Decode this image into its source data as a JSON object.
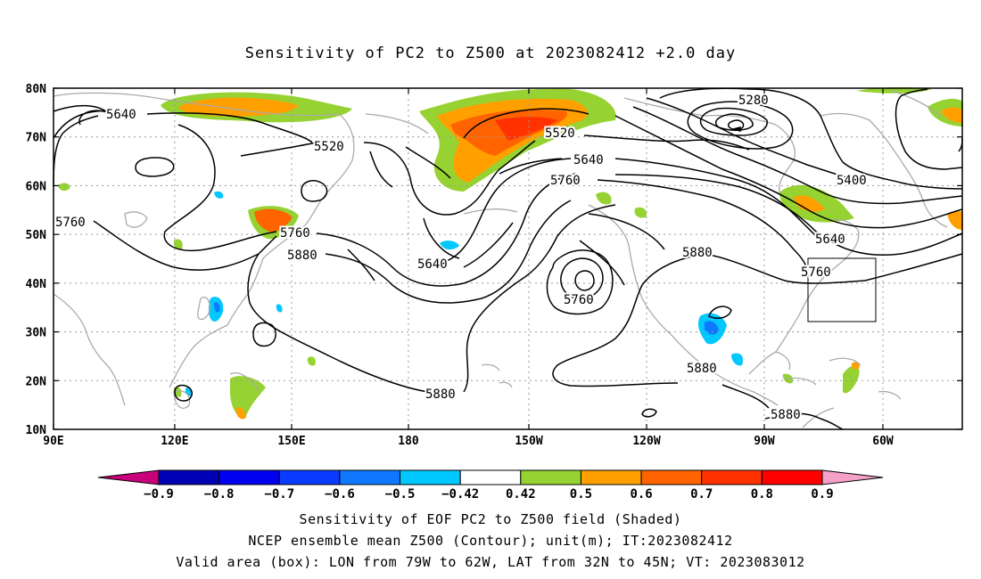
{
  "title": "Sensitivity of PC2 to Z500 at 2023082412 +2.0 day",
  "lat_labels": [
    "80N",
    "70N",
    "60N",
    "50N",
    "40N",
    "30N",
    "20N",
    "10N"
  ],
  "lon_labels": [
    "90E",
    "120E",
    "150E",
    "180",
    "150W",
    "120W",
    "90W",
    "60W"
  ],
  "contour_labels": [
    {
      "text": "5640"
    },
    {
      "text": "5520"
    },
    {
      "text": "5760"
    },
    {
      "text": "5760"
    },
    {
      "text": "5880"
    },
    {
      "text": "5640"
    },
    {
      "text": "5520"
    },
    {
      "text": "5640"
    },
    {
      "text": "5760"
    },
    {
      "text": "5760"
    },
    {
      "text": "5280"
    },
    {
      "text": "5400"
    },
    {
      "text": "5640"
    },
    {
      "text": "5760"
    },
    {
      "text": "5880"
    },
    {
      "text": "5880"
    },
    {
      "text": "5880"
    },
    {
      "text": "5880"
    }
  ],
  "colorbar": {
    "labels": [
      "-0.9",
      "-0.8",
      "-0.7",
      "-0.6",
      "-0.5",
      "-0.42",
      "0.42",
      "0.5",
      "0.6",
      "0.7",
      "0.8",
      "0.9"
    ],
    "colors": [
      "#c8007c",
      "#0000b4",
      "#0000f0",
      "#0a3cff",
      "#0f78ff",
      "#00c8ff",
      "#ffffff",
      "#96d232",
      "#ffa000",
      "#ff6400",
      "#ff3200",
      "#ff0000",
      "#f5a0c8"
    ]
  },
  "captions": [
    "Sensitivity of EOF PC2 to Z500 field (Shaded)",
    "NCEP ensemble mean Z500 (Contour); unit(m); IT:2023082412",
    "Valid area (box): LON from 79W to 62W, LAT from 32N to 45N; VT: 2023083012"
  ]
}
